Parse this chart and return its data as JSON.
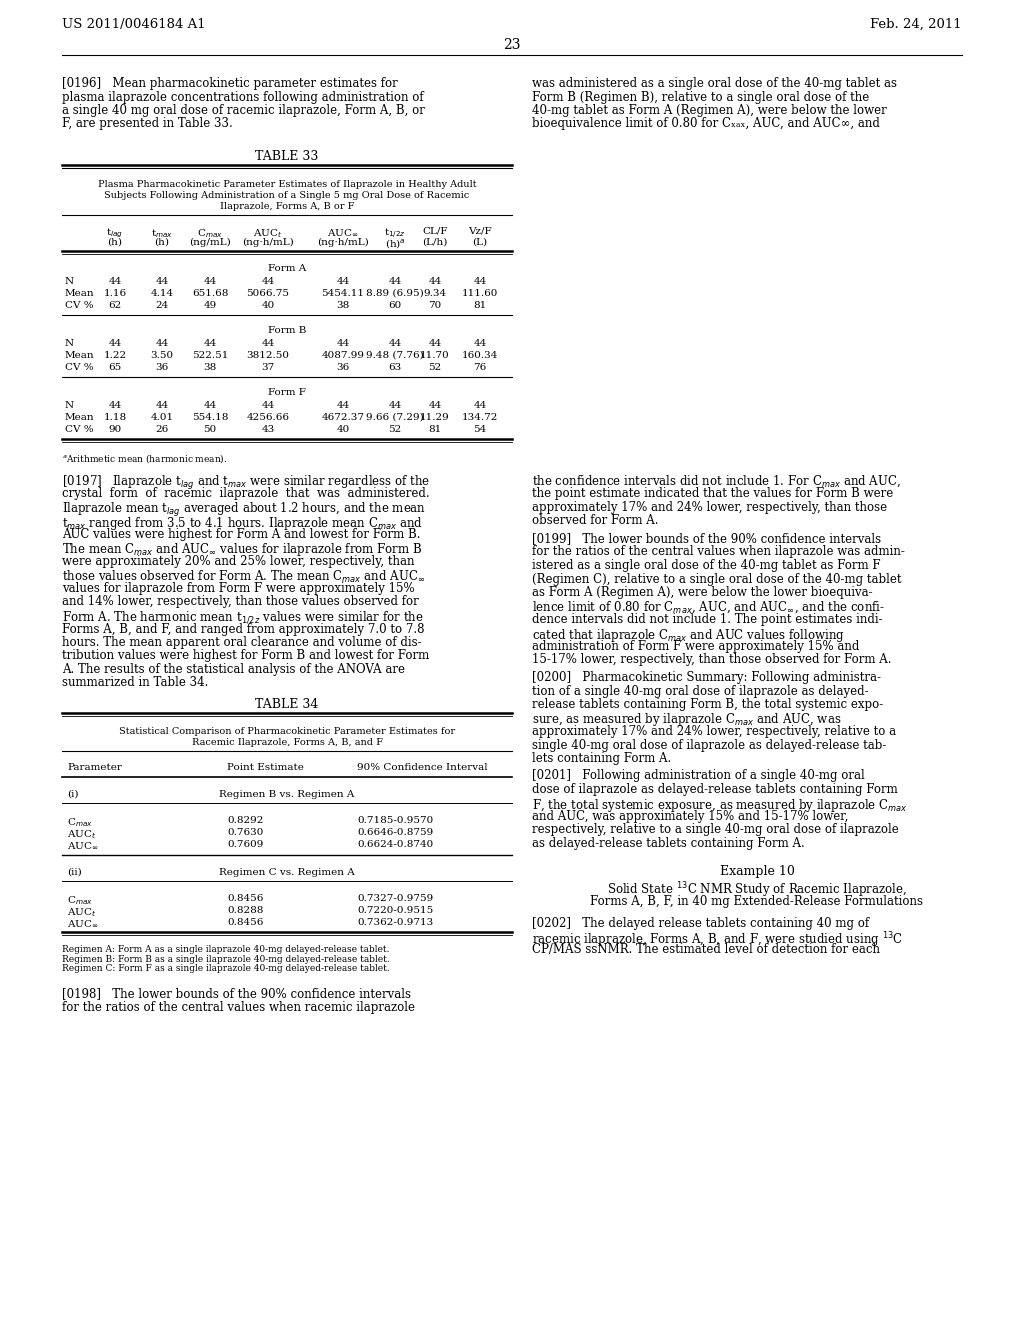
{
  "page_number": "23",
  "patent_number": "US 2011/0046184 A1",
  "patent_date": "Feb. 24, 2011",
  "background_color": "#ffffff",
  "table33_form_a": {
    "N": [
      "44",
      "44",
      "44",
      "44",
      "44",
      "44",
      "44",
      "44"
    ],
    "Mean": [
      "1.16",
      "4.14",
      "651.68",
      "5066.75",
      "5454.11",
      "8.89 (6.95)",
      "9.34",
      "111.60"
    ],
    "CV%": [
      "62",
      "24",
      "49",
      "40",
      "38",
      "60",
      "70",
      "81"
    ]
  },
  "table33_form_b": {
    "N": [
      "44",
      "44",
      "44",
      "44",
      "44",
      "44",
      "44",
      "44"
    ],
    "Mean": [
      "1.22",
      "3.50",
      "522.51",
      "3812.50",
      "4087.99",
      "9.48 (7.76)",
      "11.70",
      "160.34"
    ],
    "CV%": [
      "65",
      "36",
      "38",
      "37",
      "36",
      "63",
      "52",
      "76"
    ]
  },
  "table33_form_f": {
    "N": [
      "44",
      "44",
      "44",
      "44",
      "44",
      "44",
      "44",
      "44"
    ],
    "Mean": [
      "1.18",
      "4.01",
      "554.18",
      "4256.66",
      "4672.37",
      "9.66 (7.29)",
      "11.29",
      "134.72"
    ],
    "CV%": [
      "90",
      "26",
      "50",
      "43",
      "40",
      "52",
      "81",
      "54"
    ]
  },
  "table34_section_i": [
    [
      "C_max",
      "0.8292",
      "0.7185-0.9570"
    ],
    [
      "AUC_t",
      "0.7630",
      "0.6646-0.8759"
    ],
    [
      "AUC_inf",
      "0.7609",
      "0.6624-0.8740"
    ]
  ],
  "table34_section_ii": [
    [
      "C_max",
      "0.8456",
      "0.7327-0.9759"
    ],
    [
      "AUC_t",
      "0.8288",
      "0.7220-0.9515"
    ],
    [
      "AUC_inf",
      "0.8456",
      "0.7362-0.9713"
    ]
  ]
}
